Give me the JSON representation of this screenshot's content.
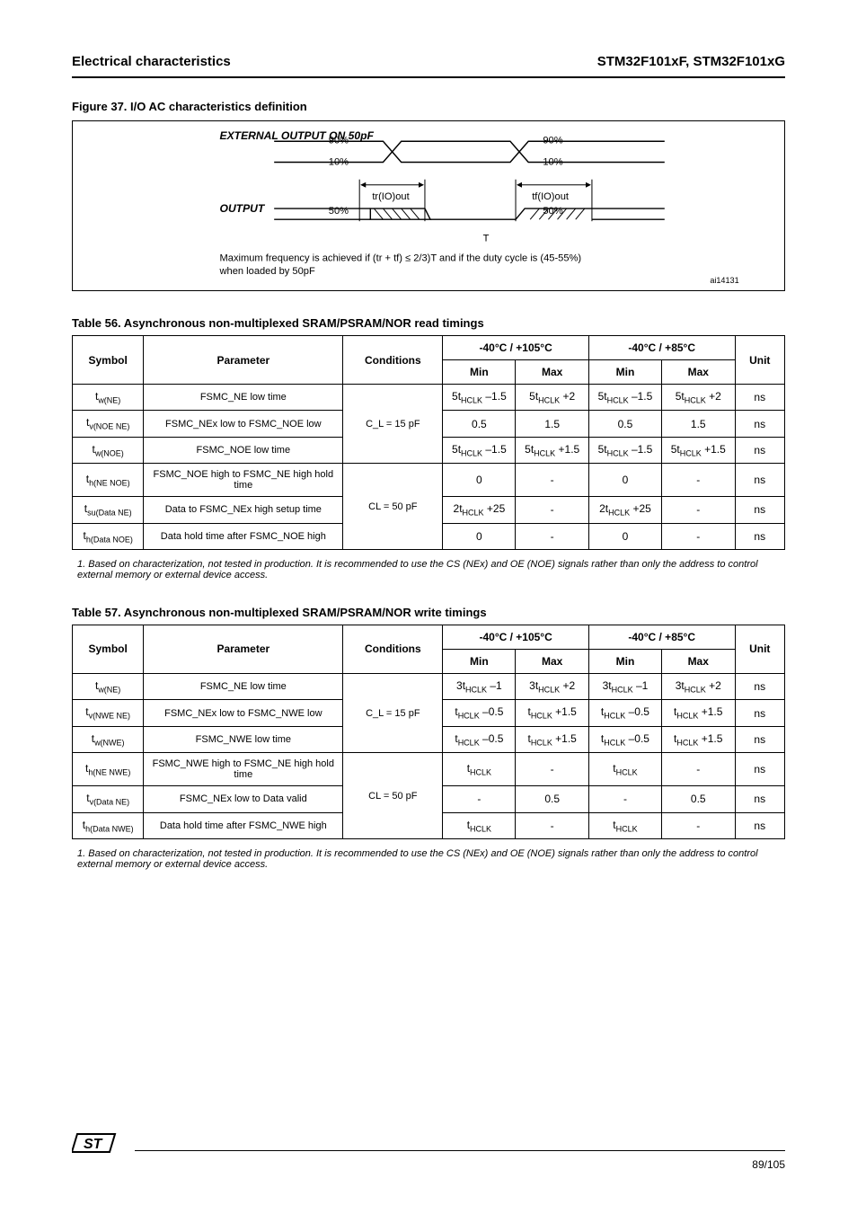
{
  "header": {
    "section": "Electrical characteristics",
    "title": "STM32F101xF, STM32F101xG"
  },
  "figure": {
    "caption": "Figure 37. I/O AC characteristics definition",
    "signals": {
      "top": "EXTERNAL OUTPUT ON 50pF",
      "bottom": "OUTPUT"
    },
    "levels": {
      "high": "90%",
      "low": "10%",
      "mid_hi": "50%",
      "mid_lo": "50%"
    },
    "dims": {
      "rise": "tr(IO)out",
      "fall": "tf(IO)out"
    },
    "note_line1": "Maximum frequency is achieved if (tr + tf) ≤ 2/3)T and if the duty cycle is (45-55%)",
    "note_line2": "when loaded by 50pF",
    "ai": "ai14131"
  },
  "tables": {
    "t56": {
      "caption": "Table 56. Asynchronous non-multiplexed SRAM/PSRAM/NOR read timings",
      "columns": [
        "Symbol",
        "Parameter",
        "Conditions",
        "-40°C / +105°C",
        "-40°C / +85°C",
        "Unit"
      ],
      "subcolumns": [
        "Min",
        "Max",
        "Min",
        "Max"
      ],
      "rows": [
        {
          "sym": "t_w(NE)",
          "desc": "FSMC_NE low time",
          "cond": "",
          "c105": {
            "min": "5t_HCLK –1.5",
            "max": "5t_HCLK +2"
          },
          "c85": {
            "min": "5t_HCLK –1.5",
            "max": "5t_HCLK +2"
          },
          "unit": "ns"
        },
        {
          "sym": "t_v(NOE_NE)",
          "desc": "FSMC_NEx low to FSMC_NOE low",
          "cond": "",
          "c105": {
            "min": "0.5",
            "max": "1.5"
          },
          "c85": {
            "min": "0.5",
            "max": "1.5"
          },
          "unit": "ns"
        },
        {
          "sym": "t_w(NOE)",
          "desc": "FSMC_NOE low time",
          "cond": "C_L = 15 pF",
          "c105": {
            "min": "5t_HCLK –1.5",
            "max": "5t_HCLK +1.5"
          },
          "c85": {
            "min": "5t_HCLK –1.5",
            "max": "5t_HCLK +1.5"
          },
          "unit": "ns"
        },
        {
          "sym": "t_h(NE_NOE)",
          "desc": "FSMC_NOE high to FSMC_NE high hold time",
          "cond": "",
          "c105": {
            "min": "0",
            "max": "-"
          },
          "c85": {
            "min": "0",
            "max": "-"
          },
          "unit": "ns"
        },
        {
          "sym": "t_su(Data_NE)",
          "desc": "Data to FSMC_NEx high setup time",
          "cond": "CL = 50 pF",
          "c105": {
            "min": "2t_HCLK +25",
            "max": "-"
          },
          "c85": {
            "min": "2t_HCLK +25",
            "max": "-"
          },
          "unit": "ns"
        },
        {
          "sym": "t_h(Data_NOE)",
          "desc": "Data hold time after FSMC_NOE high",
          "cond": "",
          "c105": {
            "min": "0",
            "max": "-"
          },
          "c85": {
            "min": "0",
            "max": "-"
          },
          "unit": "ns"
        }
      ],
      "note": "1. Based on characterization, not tested in production. It is recommended to use the CS (NEx) and OE (NOE) signals rather than only the address to control external memory or external device access."
    },
    "t57": {
      "caption": "Table 57. Asynchronous non-multiplexed SRAM/PSRAM/NOR write timings",
      "columns": [
        "Symbol",
        "Parameter",
        "Conditions",
        "-40°C / +105°C",
        "-40°C / +85°C",
        "Unit"
      ],
      "subcolumns": [
        "Min",
        "Max",
        "Min",
        "Max"
      ],
      "rows": [
        {
          "sym": "t_w(NE)",
          "desc": "FSMC_NE low time",
          "cond": "",
          "c105": {
            "min": "3t_HCLK –1",
            "max": "3t_HCLK +2"
          },
          "c85": {
            "min": "3t_HCLK –1",
            "max": "3t_HCLK +2"
          },
          "unit": "ns"
        },
        {
          "sym": "t_v(NWE_NE)",
          "desc": "FSMC_NEx low to FSMC_NWE low",
          "cond": "",
          "c105": {
            "min": "t_HCLK –0.5",
            "max": "t_HCLK +1.5"
          },
          "c85": {
            "min": "t_HCLK –0.5",
            "max": "t_HCLK +1.5"
          },
          "unit": "ns"
        },
        {
          "sym": "t_w(NWE)",
          "desc": "FSMC_NWE low time",
          "cond": "C_L = 15 pF",
          "c105": {
            "min": "t_HCLK –0.5",
            "max": "t_HCLK +1.5"
          },
          "c85": {
            "min": "t_HCLK –0.5",
            "max": "t_HCLK +1.5"
          },
          "unit": "ns"
        },
        {
          "sym": "t_h(NE_NWE)",
          "desc": "FSMC_NWE high to FSMC_NE high hold time",
          "cond": "",
          "c105": {
            "min": "t_HCLK",
            "max": "-"
          },
          "c85": {
            "min": "t_HCLK",
            "max": "-"
          },
          "unit": "ns"
        },
        {
          "sym": "t_v(Data_NE)",
          "desc": "FSMC_NEx low to Data valid",
          "cond": "CL = 50 pF",
          "c105": {
            "min": "-",
            "max": "0.5"
          },
          "c85": {
            "min": "-",
            "max": "0.5"
          },
          "unit": "ns"
        },
        {
          "sym": "t_h(Data_NWE)",
          "desc": "Data hold time after FSMC_NWE high",
          "cond": "",
          "c105": {
            "min": "t_HCLK",
            "max": "-"
          },
          "c85": {
            "min": "t_HCLK",
            "max": "-"
          },
          "unit": "ns"
        }
      ],
      "note": "1. Based on characterization, not tested in production. It is recommended to use the CS (NEx) and OE (NOE) signals rather than only the address to control external memory or external device access."
    }
  },
  "footer": {
    "page": "89/105"
  }
}
